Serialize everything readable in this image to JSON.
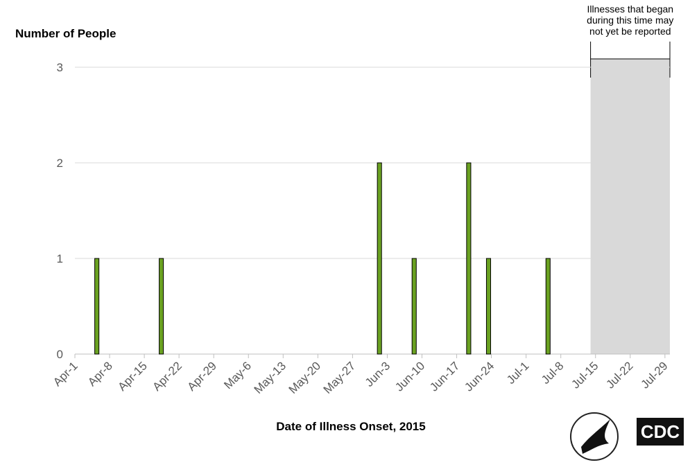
{
  "chart_data": {
    "type": "bar",
    "y_label": "Number of People",
    "x_label": "Date of Illness Onset, 2015",
    "x": [
      "2015-04-05",
      "2015-04-18",
      "2015-06-01",
      "2015-06-08",
      "2015-06-19",
      "2015-06-23",
      "2015-07-05"
    ],
    "values": [
      1,
      1,
      2,
      1,
      2,
      1,
      1
    ],
    "color": "#6aa121",
    "xlim": [
      "2015-04-01",
      "2015-07-30"
    ],
    "xticks": [
      {
        "value": "2015-04-01",
        "label": "Apr-1"
      },
      {
        "value": "2015-04-08",
        "label": "Apr-8"
      },
      {
        "value": "2015-04-15",
        "label": "Apr-15"
      },
      {
        "value": "2015-04-22",
        "label": "Apr-22"
      },
      {
        "value": "2015-04-29",
        "label": "Apr-29"
      },
      {
        "value": "2015-05-06",
        "label": "May-6"
      },
      {
        "value": "2015-05-13",
        "label": "May-13"
      },
      {
        "value": "2015-05-20",
        "label": "May-20"
      },
      {
        "value": "2015-05-27",
        "label": "May-27"
      },
      {
        "value": "2015-06-03",
        "label": "Jun-3"
      },
      {
        "value": "2015-06-10",
        "label": "Jun-10"
      },
      {
        "value": "2015-06-17",
        "label": "Jun-17"
      },
      {
        "value": "2015-06-24",
        "label": "Jun-24"
      },
      {
        "value": "2015-07-01",
        "label": "Jul-1"
      },
      {
        "value": "2015-07-08",
        "label": "Jul-8"
      },
      {
        "value": "2015-07-15",
        "label": "Jul-15"
      },
      {
        "value": "2015-07-22",
        "label": "Jul-22"
      },
      {
        "value": "2015-07-29",
        "label": "Jul-29"
      }
    ],
    "ylim": [
      0,
      3
    ],
    "yticks": [
      0,
      1,
      2,
      3
    ],
    "grid": true,
    "shaded_region": {
      "start": "2015-07-14",
      "end": "2015-07-30",
      "color": "#d9d9d9",
      "annotation": [
        "Illnesses that began",
        "during this time may",
        "not yet be reported"
      ]
    },
    "logo_text": "CDC"
  }
}
